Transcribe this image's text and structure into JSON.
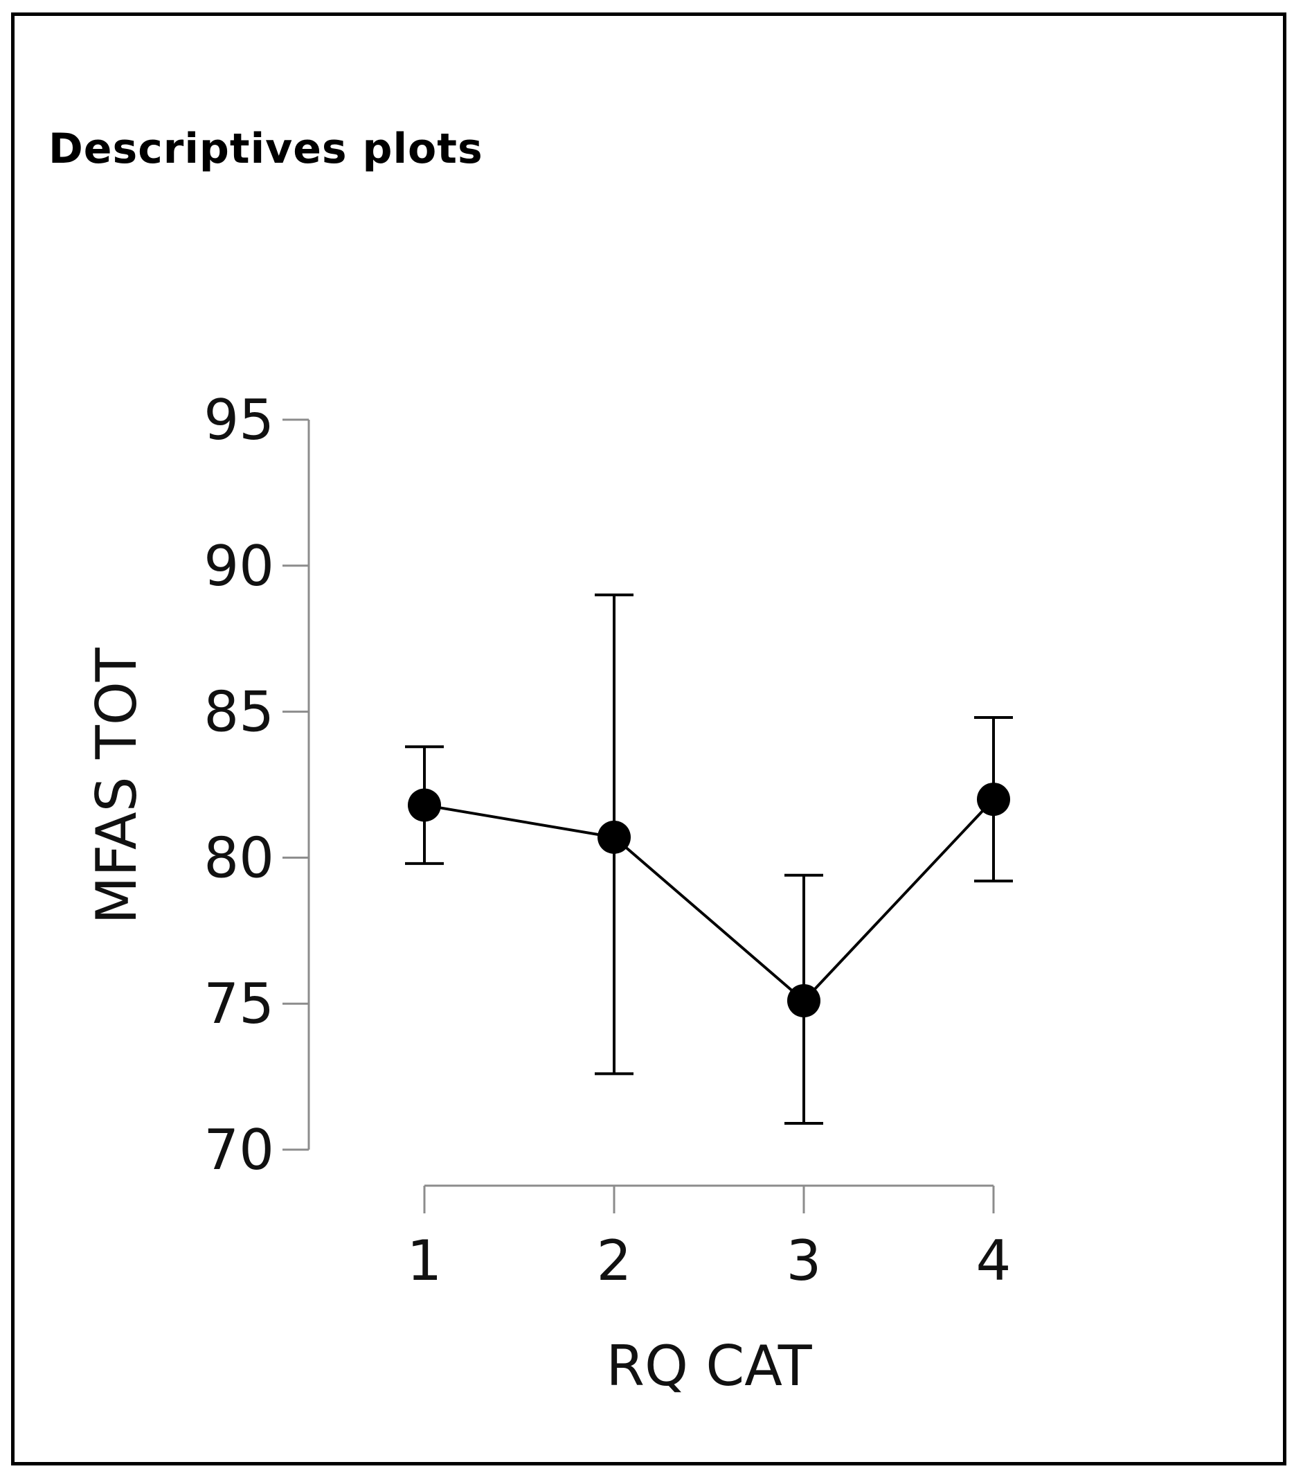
{
  "header": {
    "title": "Descriptives plots"
  },
  "colors": {
    "axis": "#8c8c8c",
    "ink": "#000000"
  },
  "chart_data": {
    "type": "line",
    "title": "",
    "xlabel": "RQ CAT",
    "ylabel": "MFAS TOT",
    "categories": [
      "1",
      "2",
      "3",
      "4"
    ],
    "series": [
      {
        "name": "MFAS TOT",
        "values": [
          81.8,
          80.7,
          75.1,
          82.0
        ],
        "error_lower": [
          79.8,
          72.6,
          70.9,
          79.2
        ],
        "error_upper": [
          83.8,
          89.0,
          79.4,
          84.8
        ]
      }
    ],
    "ylim": [
      70,
      95
    ],
    "yticks": [
      "70",
      "75",
      "80",
      "85",
      "90",
      "95"
    ],
    "grid": false
  }
}
